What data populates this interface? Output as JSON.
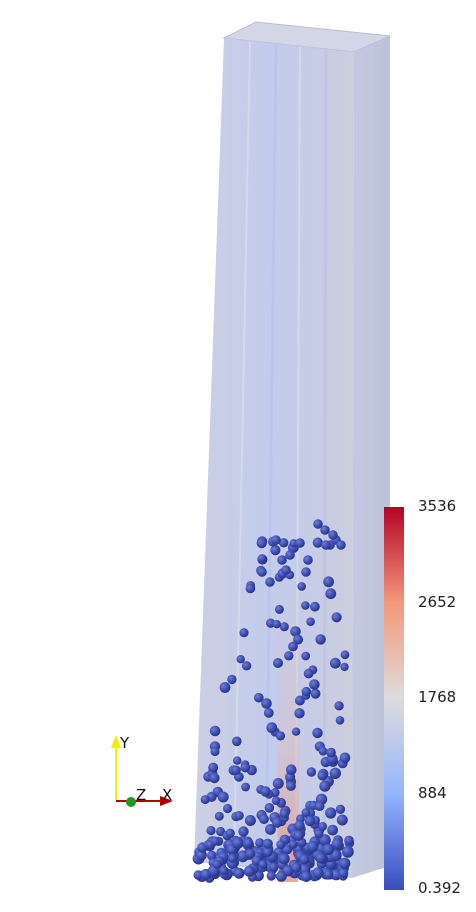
{
  "colorbar": {
    "labels": [
      "3536",
      "2652",
      "1768",
      "884",
      "0.392"
    ],
    "colors": {
      "max": "#b40426",
      "upper": "#f4987a",
      "mid": "#dddcdc",
      "lower": "#93b5fe",
      "min": "#3b4cc0"
    }
  },
  "axes": {
    "y_label": "Y",
    "z_label": "Z",
    "x_label": "X",
    "y_color": "#f0f000",
    "x_color": "#b00000",
    "z_color": "#1e9a1e"
  },
  "scene": {
    "column_fill": "#c6cce0",
    "particle_color": "#3a4aa8"
  }
}
